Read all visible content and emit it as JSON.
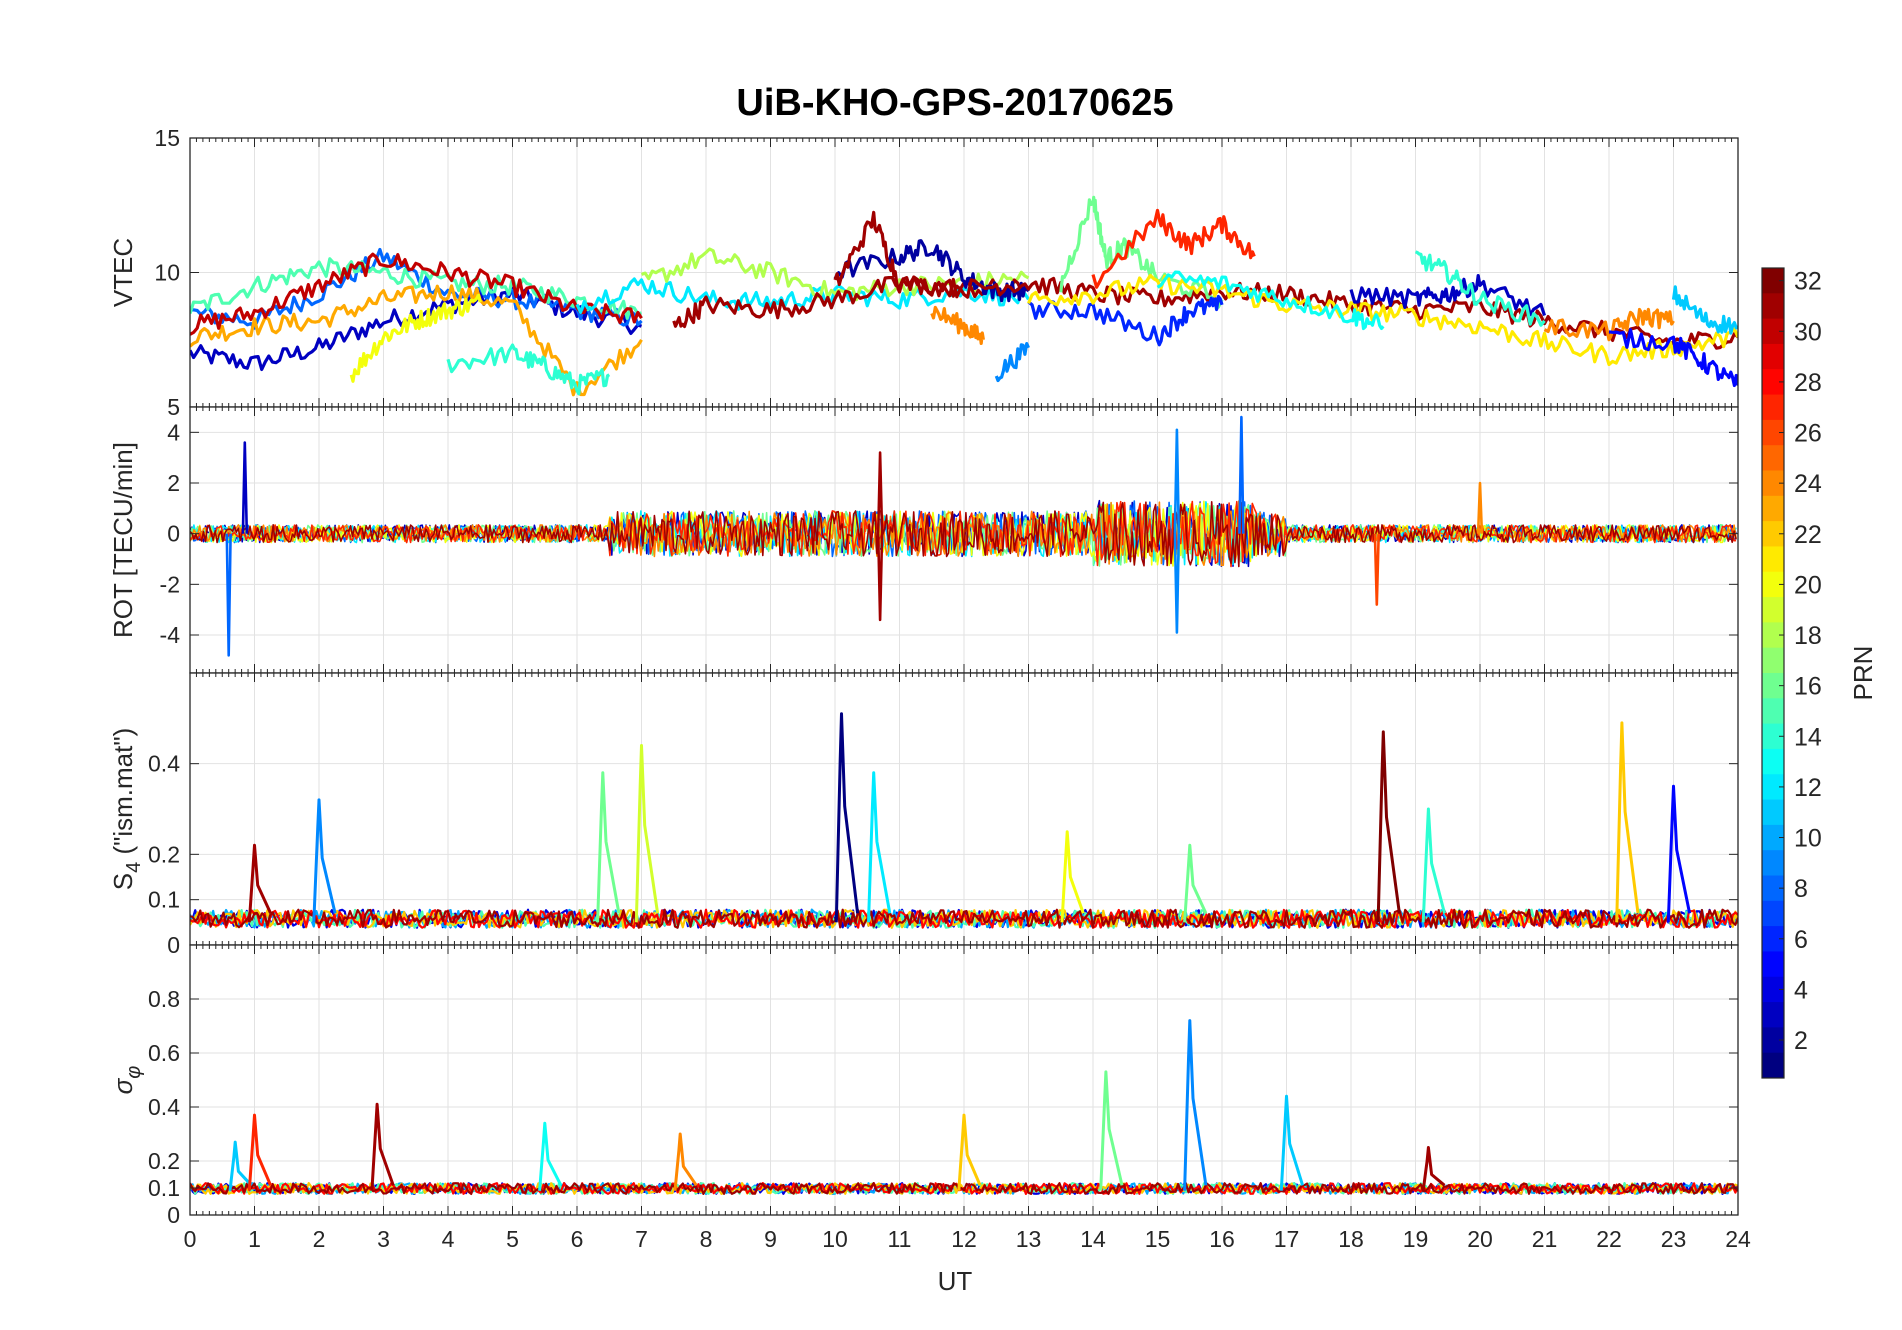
{
  "chart_data": {
    "type": "line",
    "title": "UiB-KHO-GPS-20170625",
    "xlabel": "UT",
    "xlim": [
      0,
      24
    ],
    "x_ticks": [
      "0",
      "1",
      "2",
      "3",
      "4",
      "5",
      "6",
      "7",
      "8",
      "9",
      "10",
      "11",
      "12",
      "13",
      "14",
      "15",
      "16",
      "17",
      "18",
      "19",
      "20",
      "21",
      "22",
      "23",
      "24"
    ],
    "grid": true,
    "panels": [
      {
        "ylabel": "VTEC",
        "ylim": [
          5,
          15
        ],
        "y_ticks": [
          "5",
          "10",
          "15"
        ],
        "y_tick_values": [
          5,
          10,
          15
        ],
        "series": [
          {
            "prn": 3,
            "x": [
              0,
              1,
              2,
              3,
              4,
              5,
              6,
              7
            ],
            "y": [
              7.0,
              6.6,
              7.2,
              8.2,
              8.8,
              9.2,
              8.5,
              8.0
            ]
          },
          {
            "prn": 8,
            "x": [
              0,
              1,
              2,
              3,
              4,
              5,
              6,
              7
            ],
            "y": [
              8.5,
              8.2,
              9.2,
              10.6,
              9.2,
              9.0,
              8.6,
              8.2
            ]
          },
          {
            "prn": 15,
            "x": [
              0,
              1,
              2,
              3,
              4,
              5,
              6,
              7
            ],
            "y": [
              8.6,
              9.5,
              10.2,
              10.0,
              9.6,
              9.5,
              9.0,
              8.5
            ]
          },
          {
            "prn": 23,
            "x": [
              0,
              1,
              2,
              3,
              4,
              5,
              6,
              7
            ],
            "y": [
              7.6,
              8.0,
              8.2,
              9.0,
              9.3,
              8.8,
              5.6,
              7.5
            ]
          },
          {
            "prn": 30,
            "x": [
              0,
              1,
              2,
              3,
              4,
              5,
              6,
              7
            ],
            "y": [
              8.0,
              8.5,
              9.5,
              10.5,
              10.0,
              9.5,
              8.6,
              8.3
            ]
          },
          {
            "prn": 14,
            "x": [
              4,
              5,
              5.5,
              6,
              6.5
            ],
            "y": [
              6.6,
              7.0,
              6.5,
              5.8,
              6.2
            ]
          },
          {
            "prn": 20,
            "x": [
              2.5,
              3,
              3.5,
              4,
              4.5
            ],
            "y": [
              6.2,
              7.6,
              8.2,
              8.6,
              8.9
            ]
          },
          {
            "prn": 12,
            "x": [
              6,
              7,
              8,
              9,
              10,
              11,
              12,
              13
            ],
            "y": [
              8.8,
              9.6,
              9.0,
              8.9,
              9.2,
              9.0,
              9.3,
              9.0
            ]
          },
          {
            "prn": 18,
            "x": [
              7,
              8,
              9,
              10,
              11,
              12,
              13
            ],
            "y": [
              9.6,
              10.6,
              10.0,
              9.2,
              9.5,
              9.6,
              9.8
            ]
          },
          {
            "prn": 31,
            "x": [
              7.5,
              8,
              9,
              10,
              11,
              12,
              13
            ],
            "y": [
              8.0,
              8.8,
              8.6,
              9.0,
              9.6,
              9.4,
              9.4
            ]
          },
          {
            "prn": 2,
            "x": [
              10,
              11,
              11.5,
              12,
              12.5,
              13
            ],
            "y": [
              10.0,
              10.6,
              11.0,
              9.8,
              9.3,
              9.3
            ]
          },
          {
            "prn": 31,
            "x": [
              10,
              10.6,
              11,
              12,
              13,
              14,
              15,
              16,
              17,
              18,
              19,
              20,
              21,
              22,
              23,
              24
            ],
            "y": [
              9.5,
              12.0,
              9.6,
              9.4,
              9.6,
              9.2,
              9.0,
              9.3,
              9.2,
              8.8,
              8.6,
              8.7,
              8.2,
              7.8,
              7.4,
              7.6
            ]
          },
          {
            "prn": 24,
            "x": [
              11.5,
              12,
              12.3
            ],
            "y": [
              8.6,
              8.0,
              7.5
            ]
          },
          {
            "prn": 9,
            "x": [
              12.5,
              13
            ],
            "y": [
              6.2,
              7.2
            ]
          },
          {
            "prn": 16,
            "x": [
              13.5,
              14,
              14.2,
              14.5,
              15,
              16
            ],
            "y": [
              9.5,
              12.8,
              10.5,
              11.0,
              9.8,
              9.0
            ]
          },
          {
            "prn": 6,
            "x": [
              13,
              14,
              15,
              15.5,
              16
            ],
            "y": [
              8.6,
              8.6,
              7.6,
              8.6,
              8.8
            ]
          },
          {
            "prn": 27,
            "x": [
              14,
              15,
              15.5,
              16,
              16.5
            ],
            "y": [
              9.6,
              12.0,
              11.0,
              11.8,
              10.6
            ]
          },
          {
            "prn": 21,
            "x": [
              13,
              14,
              15,
              16,
              17,
              18,
              19,
              20,
              21,
              22,
              23,
              24
            ],
            "y": [
              9.0,
              9.2,
              9.6,
              9.3,
              8.8,
              8.6,
              8.4,
              8.0,
              7.4,
              6.9,
              7.2,
              7.6
            ]
          },
          {
            "prn": 13,
            "x": [
              15,
              16,
              17,
              18,
              18.5
            ],
            "y": [
              9.8,
              9.6,
              9.0,
              8.4,
              8.0
            ]
          },
          {
            "prn": 3,
            "x": [
              18,
              19,
              19.5,
              20,
              21
            ],
            "y": [
              9.2,
              9.0,
              9.2,
              9.6,
              8.4
            ]
          },
          {
            "prn": 14,
            "x": [
              19,
              19.5,
              20,
              21
            ],
            "y": [
              10.6,
              10.0,
              9.0,
              8.2
            ]
          },
          {
            "prn": 24,
            "x": [
              21,
              22,
              22.5,
              23
            ],
            "y": [
              8.0,
              7.8,
              8.4,
              8.2
            ]
          },
          {
            "prn": 11,
            "x": [
              23,
              23.5,
              24
            ],
            "y": [
              9.2,
              8.2,
              8.0
            ]
          },
          {
            "prn": 5,
            "x": [
              22,
              23,
              23.5,
              24
            ],
            "y": [
              7.6,
              7.4,
              6.6,
              5.8
            ]
          }
        ]
      },
      {
        "ylabel": "ROT [TECU/min]",
        "ylim": [
          -5.5,
          5
        ],
        "y_ticks": [
          "-4",
          "-2",
          "0",
          "2",
          "4"
        ],
        "y_tick_values": [
          -4,
          -2,
          0,
          2,
          4
        ],
        "series_note_spikes": [
          {
            "prn": 8,
            "x": 0.6,
            "y": -4.8
          },
          {
            "prn": 3,
            "x": 0.85,
            "y": 3.6
          },
          {
            "prn": 31,
            "x": 10.7,
            "y": 3.2
          },
          {
            "prn": 31,
            "x": 10.7,
            "y": -3.4
          },
          {
            "prn": 9,
            "x": 15.3,
            "y": 4.1
          },
          {
            "prn": 9,
            "x": 15.3,
            "y": -3.9
          },
          {
            "prn": 8,
            "x": 16.3,
            "y": 4.6
          },
          {
            "prn": 26,
            "x": 18.4,
            "y": -2.8
          },
          {
            "prn": 24,
            "x": 20.0,
            "y": 2.0
          }
        ]
      },
      {
        "ylabel": "S4 (\"ism.mat\")",
        "ylim": [
          0,
          0.6
        ],
        "y_ticks": [
          "0",
          "0.1",
          "0.2",
          "0.4"
        ],
        "y_tick_values": [
          0,
          0.1,
          0.2,
          0.4
        ],
        "spikes": [
          {
            "prn": 9,
            "x": 2.0,
            "y": 0.32
          },
          {
            "prn": 31,
            "x": 1.0,
            "y": 0.22
          },
          {
            "prn": 16,
            "x": 6.4,
            "y": 0.38
          },
          {
            "prn": 19,
            "x": 7.0,
            "y": 0.44
          },
          {
            "prn": 1,
            "x": 10.1,
            "y": 0.51
          },
          {
            "prn": 12,
            "x": 10.6,
            "y": 0.38
          },
          {
            "prn": 20,
            "x": 13.6,
            "y": 0.25
          },
          {
            "prn": 16,
            "x": 15.5,
            "y": 0.22
          },
          {
            "prn": 32,
            "x": 18.5,
            "y": 0.47
          },
          {
            "prn": 14,
            "x": 19.2,
            "y": 0.3
          },
          {
            "prn": 22,
            "x": 22.2,
            "y": 0.49
          },
          {
            "prn": 5,
            "x": 23.0,
            "y": 0.35
          }
        ]
      },
      {
        "ylabel": "σφ",
        "ylim": [
          0,
          1
        ],
        "y_ticks": [
          "0",
          "0.1",
          "0.2",
          "0.4",
          "0.6",
          "0.8"
        ],
        "y_tick_values": [
          0,
          0.1,
          0.2,
          0.4,
          0.6,
          0.8
        ],
        "spikes": [
          {
            "prn": 11,
            "x": 0.7,
            "y": 0.27
          },
          {
            "prn": 27,
            "x": 1.0,
            "y": 0.37
          },
          {
            "prn": 31,
            "x": 2.9,
            "y": 0.41
          },
          {
            "prn": 13,
            "x": 5.5,
            "y": 0.34
          },
          {
            "prn": 24,
            "x": 7.6,
            "y": 0.3
          },
          {
            "prn": 22,
            "x": 12.0,
            "y": 0.37
          },
          {
            "prn": 16,
            "x": 14.2,
            "y": 0.53
          },
          {
            "prn": 9,
            "x": 15.5,
            "y": 0.72
          },
          {
            "prn": 11,
            "x": 17.0,
            "y": 0.44
          },
          {
            "prn": 31,
            "x": 19.2,
            "y": 0.25
          }
        ]
      }
    ],
    "colorbar": {
      "label": "PRN",
      "min": 1,
      "max": 32,
      "ticks": [
        "2",
        "4",
        "6",
        "8",
        "10",
        "12",
        "14",
        "16",
        "18",
        "20",
        "22",
        "24",
        "26",
        "28",
        "30",
        "32"
      ],
      "colormap": "jet"
    }
  }
}
